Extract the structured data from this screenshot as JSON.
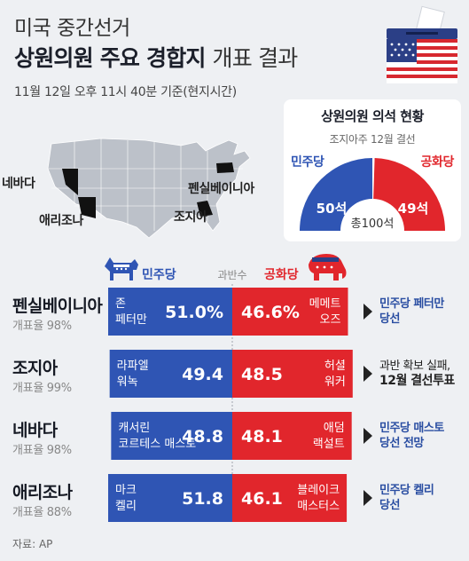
{
  "header": {
    "title_line1": "미국 중간선거",
    "title_bold": "상원의원 주요 경합지",
    "title_light": "개표 결과",
    "timestamp": "11월 12일 오후 11시 40분 기준(현지시간)"
  },
  "map": {
    "labels": {
      "nevada": "네바다",
      "arizona": "애리조나",
      "pennsylvania": "펜실베이니아",
      "georgia": "조지아"
    }
  },
  "senate_seats": {
    "title": "상원의원 의석 현황",
    "tiebreak_note": "조지아주 12월 결선",
    "dem_label": "민주당",
    "rep_label": "공화당",
    "dem_seats": 50,
    "rep_seats": 49,
    "dem_seats_label": "50석",
    "rep_seats_label": "49석",
    "total_label": "총100석"
  },
  "legend": {
    "dem_label": "민주당",
    "rep_label": "공화당",
    "majority_label": "과반수"
  },
  "colors": {
    "dem": "#2f55b4",
    "rep": "#e1262c",
    "background": "#eef0f3"
  },
  "races": [
    {
      "state": "펜실베이니아",
      "turnout": "개표율 98%",
      "dem_candidate": [
        "존",
        "페터만"
      ],
      "dem_pct_label": "51.0%",
      "rep_pct_label": "46.6%",
      "rep_candidate": [
        "메메트",
        "오즈"
      ],
      "result": [
        "민주당 페터만",
        "당선"
      ],
      "result_type": "dem"
    },
    {
      "state": "조지아",
      "turnout": "개표율 99%",
      "dem_candidate": [
        "라파엘",
        "워녹"
      ],
      "dem_pct_label": "49.4",
      "rep_pct_label": "48.5",
      "rep_candidate": [
        "허셜",
        "워커"
      ],
      "result": [
        "과반 확보 실패,",
        "12월 결선투표"
      ],
      "result_type": "undecided"
    },
    {
      "state": "네바다",
      "turnout": "개표율 98%",
      "dem_candidate": [
        "캐서린",
        "코르테스 매스토"
      ],
      "dem_pct_label": "48.8",
      "rep_pct_label": "48.1",
      "rep_candidate": [
        "애덤",
        "랙설트"
      ],
      "result": [
        "민주당 매스토",
        "당선 전망"
      ],
      "result_type": "dem"
    },
    {
      "state": "애리조나",
      "turnout": "개표율 88%",
      "dem_candidate": [
        "마크",
        "켈리"
      ],
      "dem_pct_label": "51.8",
      "rep_pct_label": "46.1",
      "rep_candidate": [
        "블레이크",
        "매스터스"
      ],
      "result": [
        "민주당 켈리",
        "당선"
      ],
      "result_type": "dem"
    }
  ],
  "chart_data": {
    "type": "bar",
    "categories": [
      "펜실베이니아",
      "조지아",
      "네바다",
      "애리조나"
    ],
    "series": [
      {
        "name": "민주당",
        "values": [
          51.0,
          49.4,
          48.8,
          51.8
        ]
      },
      {
        "name": "공화당",
        "values": [
          46.6,
          48.5,
          48.1,
          46.1
        ]
      }
    ],
    "ylabel": "",
    "xlabel": ""
  },
  "source": "자료: AP"
}
